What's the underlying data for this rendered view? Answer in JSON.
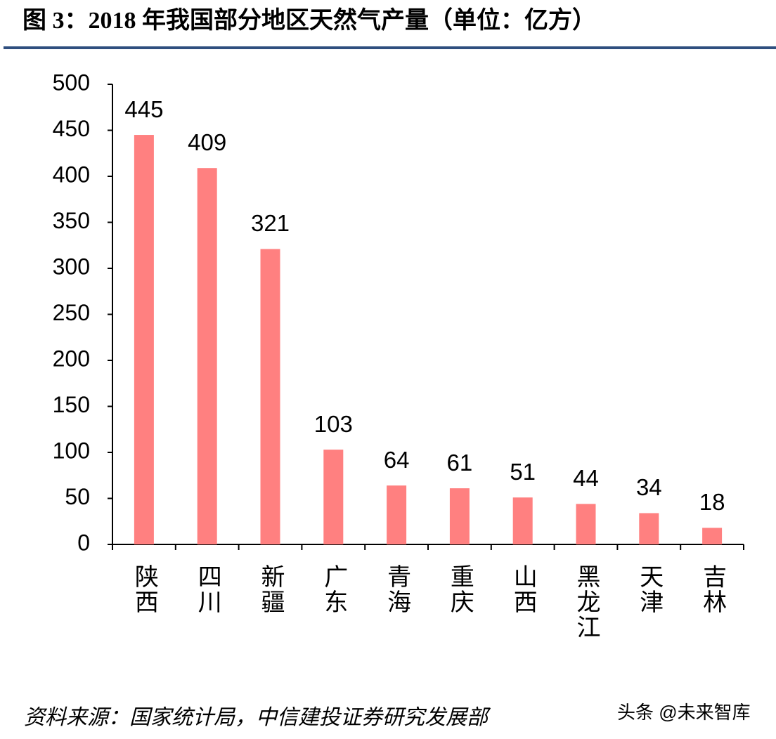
{
  "chart_data": {
    "type": "bar",
    "title": "图 3：2018 年我国部分地区天然气产量（单位：亿方）",
    "categories": [
      "陕西",
      "四川",
      "新疆",
      "广东",
      "青海",
      "重庆",
      "山西",
      "黑龙江",
      "天津",
      "吉林"
    ],
    "values": [
      445,
      409,
      321,
      103,
      64,
      61,
      51,
      44,
      34,
      18
    ],
    "color": "#ff8080",
    "ylim": [
      0,
      500
    ],
    "yticks": [
      0,
      50,
      100,
      150,
      200,
      250,
      300,
      350,
      400,
      450,
      500
    ],
    "grid": false,
    "source": "资料来源：国家统计局，中信建投证券研究发展部",
    "credit": "头条 @未来智库"
  }
}
